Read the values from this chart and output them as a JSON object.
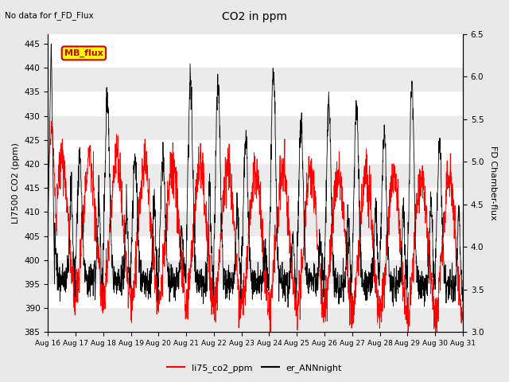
{
  "title": "CO2 in ppm",
  "subtitle": "No data for f_FD_Flux",
  "ylabel_left": "LI7500 CO2 (ppm)",
  "ylabel_right": "FD Chamber-flux",
  "ylim_left": [
    385,
    447
  ],
  "ylim_right": [
    3.0,
    6.5
  ],
  "yticks_left": [
    385,
    390,
    395,
    400,
    405,
    410,
    415,
    420,
    425,
    430,
    435,
    440,
    445
  ],
  "yticks_right": [
    3.0,
    3.5,
    4.0,
    4.5,
    5.0,
    5.5,
    6.0,
    6.5
  ],
  "x_labels": [
    "Aug 16",
    "Aug 17",
    "Aug 18",
    "Aug 19",
    "Aug 20",
    "Aug 21",
    "Aug 22",
    "Aug 23",
    "Aug 24",
    "Aug 25",
    "Aug 26",
    "Aug 27",
    "Aug 28",
    "Aug 29",
    "Aug 30",
    "Aug 31"
  ],
  "legend_label_red": "li75_co2_ppm",
  "legend_label_black": "er_ANNnight",
  "legend_box_label": "MB_flux",
  "line_color_red": "#ff0000",
  "line_color_black": "#000000",
  "legend_box_color": "#ffff00",
  "legend_box_edge": "#cc0000",
  "bg_color": "#e8e8e8",
  "plot_bg_color": "#ffffff",
  "band_color": "#dcdcdc"
}
